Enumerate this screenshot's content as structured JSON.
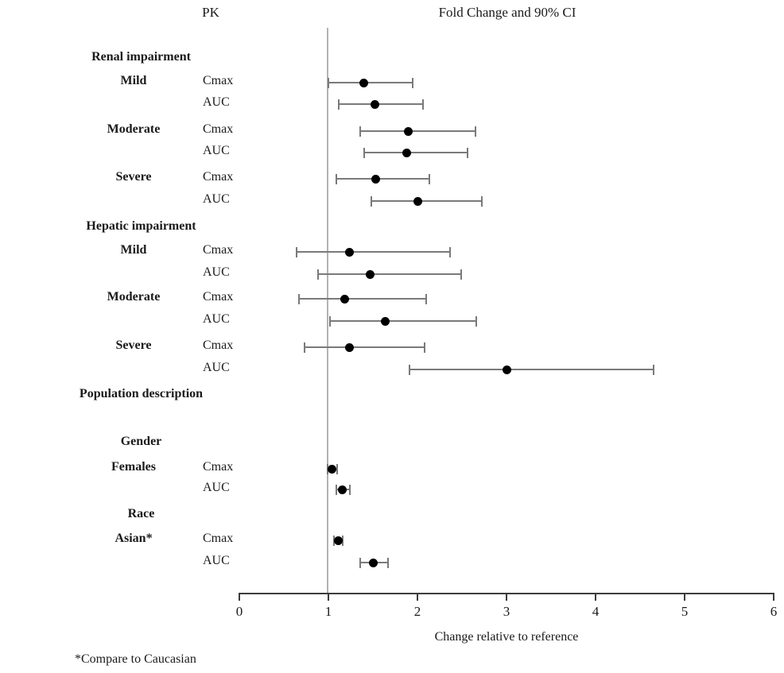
{
  "header": {
    "left": "PK",
    "right": "Fold Change and 90% CI"
  },
  "footnote": "*Compare to Caucasian",
  "colors": {
    "marker": "#000000",
    "ci_line": "#7a7a7a",
    "reference_line": "#b3b3b3",
    "axis": "#3c3c3c"
  },
  "chart_data": {
    "type": "scatter",
    "subtype": "forest-plot",
    "title": "Fold Change and 90% CI",
    "xlabel": "Change relative to reference",
    "xlim": [
      0,
      6
    ],
    "ticks": [
      "0",
      "1",
      "2",
      "3",
      "4",
      "5",
      "6"
    ],
    "tick_values": [
      0,
      1,
      2,
      3,
      4,
      5,
      6
    ],
    "reference_line": 1.0,
    "grid": false,
    "legend": "none",
    "groups": [
      {
        "label": "Renal impairment",
        "items": [
          {
            "label": "Mild",
            "rows": [
              {
                "param": "Cmax",
                "estimate": 1.4,
                "ci_low": 1.0,
                "ci_high": 1.95
              },
              {
                "param": "AUC",
                "estimate": 1.52,
                "ci_low": 1.12,
                "ci_high": 2.06
              }
            ]
          },
          {
            "label": "Moderate",
            "rows": [
              {
                "param": "Cmax",
                "estimate": 1.9,
                "ci_low": 1.36,
                "ci_high": 2.65
              },
              {
                "param": "AUC",
                "estimate": 1.88,
                "ci_low": 1.4,
                "ci_high": 2.56
              }
            ]
          },
          {
            "label": "Severe",
            "rows": [
              {
                "param": "Cmax",
                "estimate": 1.53,
                "ci_low": 1.09,
                "ci_high": 2.13
              },
              {
                "param": "AUC",
                "estimate": 2.0,
                "ci_low": 1.48,
                "ci_high": 2.72
              }
            ]
          }
        ]
      },
      {
        "label": "Hepatic impairment",
        "items": [
          {
            "label": "Mild",
            "rows": [
              {
                "param": "Cmax",
                "estimate": 1.24,
                "ci_low": 0.64,
                "ci_high": 2.37
              },
              {
                "param": "AUC",
                "estimate": 1.47,
                "ci_low": 0.88,
                "ci_high": 2.49
              }
            ]
          },
          {
            "label": "Moderate",
            "rows": [
              {
                "param": "Cmax",
                "estimate": 1.18,
                "ci_low": 0.67,
                "ci_high": 2.1
              },
              {
                "param": "AUC",
                "estimate": 1.64,
                "ci_low": 1.02,
                "ci_high": 2.66
              }
            ]
          },
          {
            "label": "Severe",
            "rows": [
              {
                "param": "Cmax",
                "estimate": 1.24,
                "ci_low": 0.73,
                "ci_high": 2.08
              },
              {
                "param": "AUC",
                "estimate": 3.0,
                "ci_low": 1.91,
                "ci_high": 4.65
              }
            ]
          }
        ]
      },
      {
        "label": "Population description",
        "items": []
      },
      {
        "label": "Gender",
        "items": [
          {
            "label": "Females",
            "rows": [
              {
                "param": "Cmax",
                "estimate": 1.04,
                "ci_low": 0.99,
                "ci_high": 1.1
              },
              {
                "param": "AUC",
                "estimate": 1.16,
                "ci_low": 1.09,
                "ci_high": 1.24
              }
            ]
          }
        ]
      },
      {
        "label": "Race",
        "items": [
          {
            "label": "Asian*",
            "rows": [
              {
                "param": "Cmax",
                "estimate": 1.11,
                "ci_low": 1.06,
                "ci_high": 1.16
              },
              {
                "param": "AUC",
                "estimate": 1.5,
                "ci_low": 1.36,
                "ci_high": 1.67
              }
            ]
          }
        ]
      }
    ]
  }
}
